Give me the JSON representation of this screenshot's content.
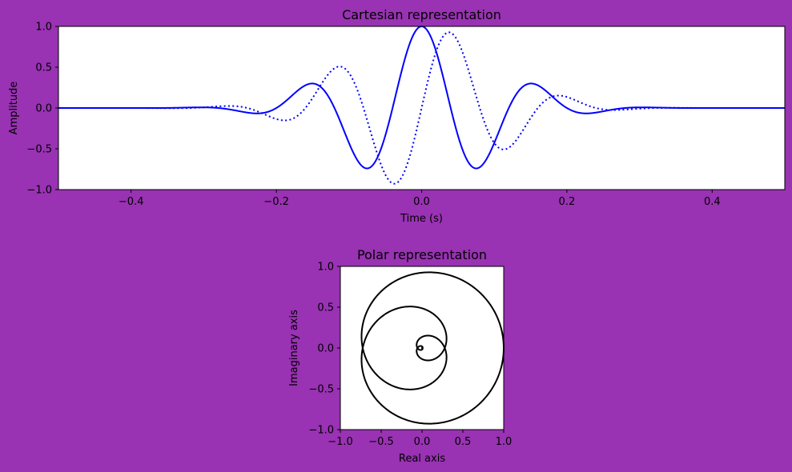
{
  "figure": {
    "background": "#9932b3"
  },
  "chart_data": [
    {
      "id": "cartesian",
      "type": "line",
      "title": "Cartesian representation",
      "xlabel": "Time (s)",
      "ylabel": "Amplitude",
      "xlim": [
        -0.5,
        0.5
      ],
      "ylim": [
        -1.0,
        1.0
      ],
      "xticks": [
        -0.4,
        -0.2,
        0.0,
        0.2,
        0.4
      ],
      "xtick_labels": [
        "−0.4",
        "−0.2",
        "0.0",
        "0.2",
        "0.4"
      ],
      "yticks": [
        -1.0,
        -0.5,
        0.0,
        0.5,
        1.0
      ],
      "ytick_labels": [
        "−1.0",
        "−0.5",
        "0.0",
        "0.5",
        "1.0"
      ],
      "grid": false,
      "signal": {
        "carrier_hz": 6.25,
        "gaussian_sigma_s": 0.1
      },
      "series": [
        {
          "style": "solid",
          "color": "#0000ff",
          "component": "real"
        },
        {
          "style": "dotted",
          "color": "#0000ff",
          "component": "imag"
        }
      ]
    },
    {
      "id": "polar",
      "type": "line",
      "title": "Polar representation",
      "xlabel": "Real axis",
      "ylabel": "Imaginary axis",
      "xlim": [
        -1.0,
        1.0
      ],
      "ylim": [
        -1.0,
        1.0
      ],
      "xticks": [
        -1.0,
        -0.5,
        0.0,
        0.5,
        1.0
      ],
      "xtick_labels": [
        "−1.0",
        "−0.5",
        "0.0",
        "0.5",
        "1.0"
      ],
      "yticks": [
        -1.0,
        -0.5,
        0.0,
        0.5,
        1.0
      ],
      "ytick_labels": [
        "−1.0",
        "−0.5",
        "0.0",
        "0.5",
        "1.0"
      ],
      "grid": false,
      "series": [
        {
          "style": "solid",
          "color": "#000000",
          "component": "analytic"
        }
      ]
    }
  ]
}
